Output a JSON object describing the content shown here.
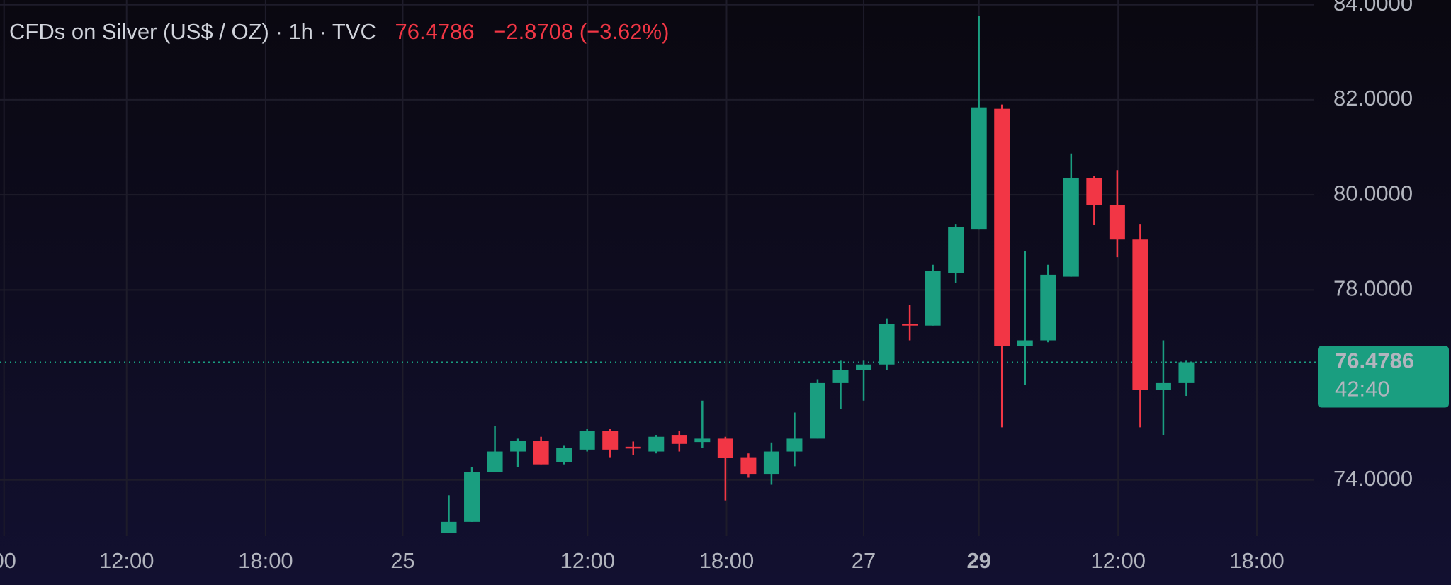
{
  "chart_data": {
    "type": "candlestick",
    "title": "CFDs on Silver (US$ / OZ) · 1h · TVC",
    "last_price": 76.4786,
    "change": "−2.8708 (−3.62%)",
    "countdown": "42:40",
    "up_color": "#1a9e80",
    "down_color": "#f23645",
    "grid": true,
    "x_tick_labels": [
      "00",
      "12:00",
      "18:00",
      "25",
      "12:00",
      "18:00",
      "27",
      "29",
      "12:00",
      "18:00"
    ],
    "ylim": [
      72.82,
      84.1
    ],
    "yticks": [
      {
        "value": 74,
        "label": "74.0000"
      },
      {
        "value": 78,
        "label": "78.0000"
      },
      {
        "value": 80,
        "label": "80.0000"
      },
      {
        "value": 82,
        "label": "82.0000"
      },
      {
        "value": 84,
        "label": "84.0000"
      }
    ],
    "open": [
      72.89,
      73.12,
      74.17,
      74.6,
      74.83,
      74.37,
      74.64,
      75.03,
      74.7,
      74.6,
      74.95,
      74.8,
      74.87,
      74.48,
      74.13,
      74.6,
      74.87,
      76.04,
      76.31,
      76.43,
      77.29,
      77.25,
      78.36,
      79.27,
      81.81,
      76.82,
      76.94,
      78.28,
      80.36,
      79.78,
      79.06,
      75.89,
      76.04
    ],
    "high": [
      73.68,
      74.27,
      75.14,
      74.87,
      74.91,
      74.72,
      75.07,
      75.07,
      74.81,
      74.95,
      75.03,
      75.67,
      74.91,
      74.56,
      74.79,
      75.42,
      76.12,
      76.51,
      76.51,
      77.4,
      77.68,
      78.53,
      79.39,
      83.77,
      81.9,
      78.81,
      78.53,
      80.87,
      80.4,
      80.52,
      79.39,
      76.94,
      76.51
    ],
    "low": [
      72.89,
      73.12,
      74.17,
      74.27,
      74.33,
      74.33,
      74.6,
      74.48,
      74.52,
      74.56,
      74.6,
      74.68,
      73.57,
      74.05,
      73.9,
      74.29,
      74.87,
      75.5,
      75.67,
      76.31,
      76.94,
      77.25,
      78.14,
      79.27,
      75.11,
      76.0,
      76.9,
      78.28,
      79.37,
      78.69,
      75.11,
      74.95,
      75.77
    ],
    "close": [
      73.12,
      74.17,
      74.6,
      74.83,
      74.33,
      74.68,
      75.03,
      74.64,
      74.68,
      74.91,
      74.76,
      74.87,
      74.46,
      74.13,
      74.6,
      74.87,
      76.04,
      76.31,
      76.43,
      77.29,
      77.25,
      78.4,
      79.33,
      81.84,
      76.82,
      76.94,
      78.32,
      80.36,
      79.78,
      79.06,
      75.89,
      76.04,
      76.4786
    ]
  }
}
